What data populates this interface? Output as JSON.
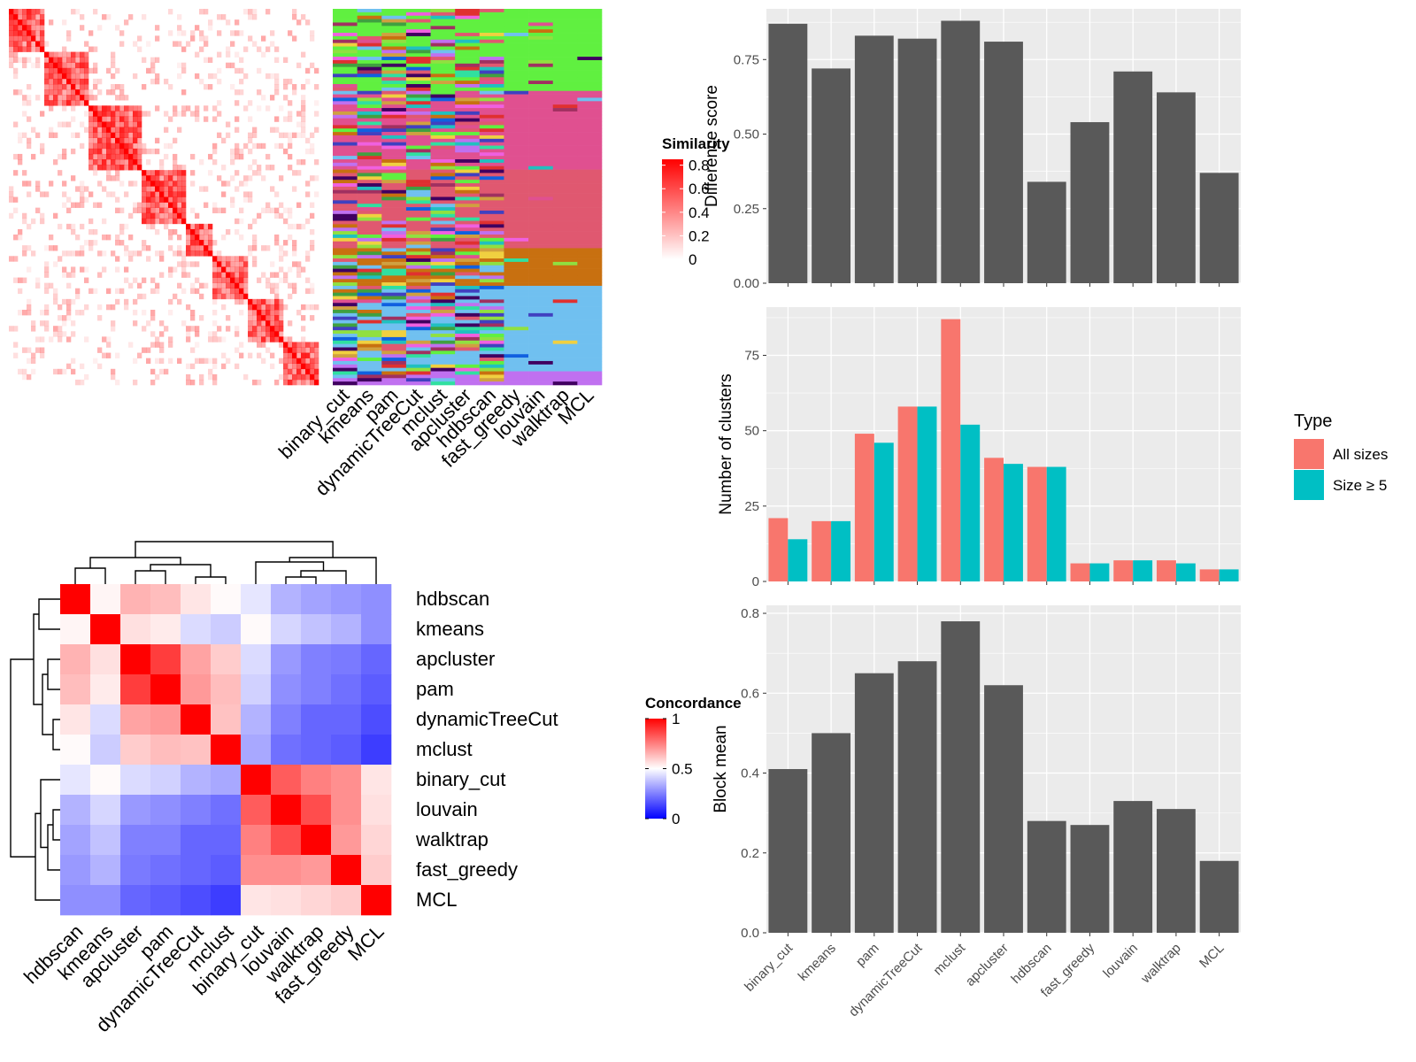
{
  "colors": {
    "panel_bg": "#EBEBEB",
    "grid": "#FFFFFF",
    "bar": "#595959",
    "all_sizes": "#F8766D",
    "size_ge5": "#00BFC4",
    "sim_high": "#FF0000",
    "sim_low": "#FFFFFF",
    "conc_high": "#FF0000",
    "conc_mid": "#FFFFFF",
    "conc_low": "#0000FF",
    "text_dark": "#000000",
    "axis_text": "#4D4D4D"
  },
  "similarity_heatmap": {
    "legend_title": "Similarity",
    "legend_ticks": [
      "0",
      "0.2",
      "0.4",
      "0.6",
      "0.8"
    ]
  },
  "cluster_label_heatmap": {
    "methods": [
      "binary_cut",
      "kmeans",
      "pam",
      "dynamicTreeCut",
      "mclust",
      "apcluster",
      "hdbscan",
      "fast_greedy",
      "louvain",
      "walktrap",
      "MCL"
    ],
    "palette": [
      "#60F040",
      "#E05090",
      "#E05870",
      "#C87010",
      "#70C0F0",
      "#C070F0",
      "#4040C0",
      "#90E040",
      "#30E0A0",
      "#F0D040",
      "#1060E0",
      "#F060E0",
      "#A03060",
      "#20C0C0",
      "#400060",
      "#E03030",
      "#40A040",
      "#D0A040"
    ]
  },
  "concordance_heatmap": {
    "legend_title": "Concordance",
    "legend_ticks": [
      "0",
      "0.5",
      "1"
    ],
    "row_labels": [
      "hdbscan",
      "kmeans",
      "apcluster",
      "pam",
      "dynamicTreeCut",
      "mclust",
      "binary_cut",
      "louvain",
      "walktrap",
      "fast_greedy",
      "MCL"
    ],
    "col_labels": [
      "hdbscan",
      "kmeans",
      "apcluster",
      "pam",
      "dynamicTreeCut",
      "mclust",
      "binary_cut",
      "louvain",
      "walktrap",
      "fast_greedy",
      "MCL"
    ]
  },
  "chart_data": [
    {
      "type": "heatmap",
      "labels": [
        "hdbscan",
        "kmeans",
        "apcluster",
        "pam",
        "dynamicTreeCut",
        "mclust",
        "binary_cut",
        "louvain",
        "walktrap",
        "fast_greedy",
        "MCL"
      ],
      "values": [
        [
          1.0,
          0.52,
          0.65,
          0.63,
          0.55,
          0.51,
          0.45,
          0.35,
          0.32,
          0.3,
          0.28
        ],
        [
          0.52,
          1.0,
          0.56,
          0.54,
          0.43,
          0.4,
          0.51,
          0.42,
          0.38,
          0.35,
          0.28
        ],
        [
          0.65,
          0.56,
          1.0,
          0.88,
          0.68,
          0.6,
          0.43,
          0.3,
          0.25,
          0.24,
          0.2
        ],
        [
          0.63,
          0.54,
          0.88,
          1.0,
          0.7,
          0.63,
          0.41,
          0.28,
          0.25,
          0.22,
          0.18
        ],
        [
          0.55,
          0.43,
          0.68,
          0.7,
          1.0,
          0.62,
          0.35,
          0.25,
          0.2,
          0.2,
          0.15
        ],
        [
          0.51,
          0.4,
          0.6,
          0.63,
          0.62,
          1.0,
          0.33,
          0.22,
          0.2,
          0.18,
          0.12
        ],
        [
          0.45,
          0.51,
          0.43,
          0.41,
          0.35,
          0.33,
          1.0,
          0.82,
          0.75,
          0.72,
          0.55
        ],
        [
          0.35,
          0.42,
          0.3,
          0.28,
          0.25,
          0.22,
          0.82,
          1.0,
          0.85,
          0.72,
          0.56
        ],
        [
          0.32,
          0.38,
          0.25,
          0.25,
          0.2,
          0.2,
          0.75,
          0.85,
          1.0,
          0.7,
          0.58
        ],
        [
          0.3,
          0.35,
          0.24,
          0.22,
          0.2,
          0.18,
          0.72,
          0.72,
          0.7,
          1.0,
          0.6
        ],
        [
          0.28,
          0.28,
          0.2,
          0.18,
          0.15,
          0.12,
          0.55,
          0.56,
          0.58,
          0.6,
          1.0
        ]
      ],
      "legend_title": "Concordance",
      "range": [
        0,
        1
      ]
    },
    {
      "type": "bar",
      "categories": [
        "binary_cut",
        "kmeans",
        "pam",
        "dynamicTreeCut",
        "mclust",
        "apcluster",
        "hdbscan",
        "fast_greedy",
        "louvain",
        "walktrap",
        "MCL"
      ],
      "values": [
        0.87,
        0.72,
        0.83,
        0.82,
        0.88,
        0.81,
        0.34,
        0.54,
        0.71,
        0.64,
        0.37
      ],
      "ylabel": "Difference score",
      "ylim": [
        0,
        0.92
      ],
      "yticks": [
        0,
        0.25,
        0.5,
        0.75
      ],
      "ytick_labels": [
        "0.00",
        "0.25",
        "0.50",
        "0.75"
      ],
      "grid": true
    },
    {
      "type": "bar",
      "categories": [
        "binary_cut",
        "kmeans",
        "pam",
        "dynamicTreeCut",
        "mclust",
        "apcluster",
        "hdbscan",
        "fast_greedy",
        "louvain",
        "walktrap",
        "MCL"
      ],
      "series": [
        {
          "name": "All sizes",
          "values": [
            21,
            20,
            49,
            58,
            87,
            41,
            38,
            6,
            7,
            7,
            4
          ]
        },
        {
          "name": "Size ≥ 5",
          "values": [
            14,
            20,
            46,
            58,
            52,
            39,
            38,
            6,
            7,
            6,
            4
          ]
        }
      ],
      "ylabel": "Number of clusters",
      "ylim": [
        0,
        91
      ],
      "yticks": [
        0,
        25,
        50,
        75
      ],
      "ytick_labels": [
        "0",
        "25",
        "50",
        "75"
      ],
      "legend_title": "Type",
      "legend_position": "right",
      "grid": true
    },
    {
      "type": "bar",
      "categories": [
        "binary_cut",
        "kmeans",
        "pam",
        "dynamicTreeCut",
        "mclust",
        "apcluster",
        "hdbscan",
        "fast_greedy",
        "louvain",
        "walktrap",
        "MCL"
      ],
      "values": [
        0.41,
        0.5,
        0.65,
        0.68,
        0.78,
        0.62,
        0.28,
        0.27,
        0.33,
        0.31,
        0.18
      ],
      "ylabel": "Block mean",
      "ylim": [
        0,
        0.82
      ],
      "yticks": [
        0,
        0.2,
        0.4,
        0.6,
        0.8
      ],
      "ytick_labels": [
        "0.0",
        "0.2",
        "0.4",
        "0.6",
        "0.8"
      ],
      "xlabels_rotated": true,
      "grid": true
    }
  ]
}
